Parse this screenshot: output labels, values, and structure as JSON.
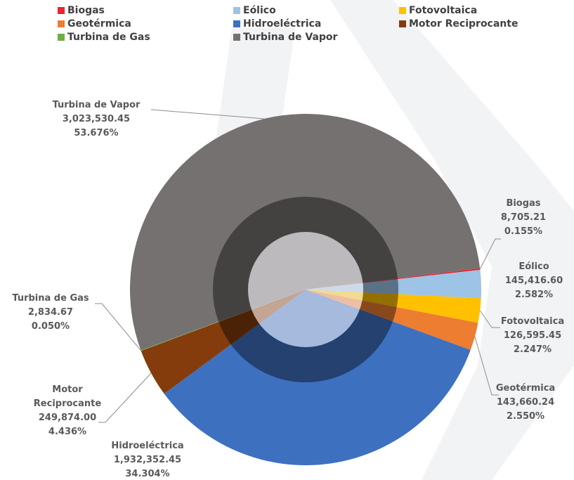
{
  "chart_data": {
    "type": "pie",
    "categories": [
      "Biogas",
      "Eólico",
      "Fotovoltaica",
      "Geotérmica",
      "Hidroeléctrica",
      "Motor Reciprocante",
      "Turbina de Gas",
      "Turbina de Vapor"
    ],
    "values": [
      8705.21,
      145416.6,
      126595.45,
      143660.24,
      1932352.45,
      249874.0,
      2834.67,
      3023530.45
    ],
    "value_labels": [
      "8,705.21",
      "145,416.60",
      "126,595.45",
      "143,660.24",
      "1,932,352.45",
      "249,874.00",
      "2,834.67",
      "3,023,530.45"
    ],
    "percentages": [
      0.155,
      2.582,
      2.247,
      2.55,
      34.304,
      4.436,
      0.05,
      53.676
    ],
    "percentage_labels": [
      "0.155%",
      "2.582%",
      "2.247%",
      "2.550%",
      "34.304%",
      "4.436%",
      "0.050%",
      "53.676%"
    ],
    "colors": [
      "#e8262d",
      "#9dc3e6",
      "#ffc000",
      "#ed7d31",
      "#3e70c0",
      "#843c0c",
      "#70ad47",
      "#767171"
    ],
    "legend": "top"
  }
}
